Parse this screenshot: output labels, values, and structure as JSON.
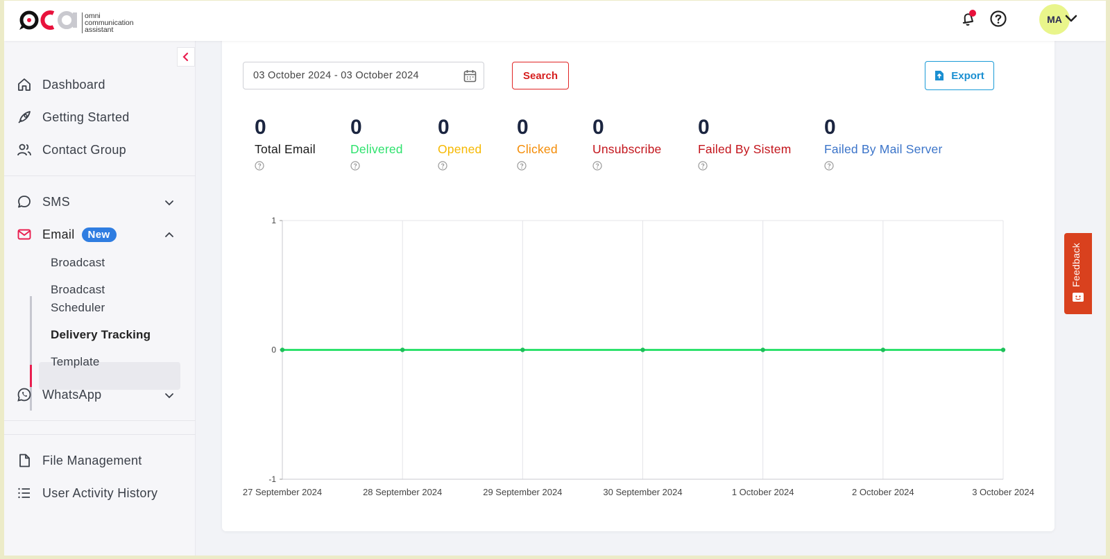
{
  "header": {
    "logo_lines": [
      "omni",
      "communication",
      "assistant"
    ],
    "logo_mark": "oca",
    "icons": [
      "bell-icon",
      "help-icon"
    ],
    "avatar_initials": "MA",
    "notification_dot_color": "#e8123c"
  },
  "sidebar": {
    "items": [
      {
        "label": "Dashboard",
        "icon": "home-icon"
      },
      {
        "label": "Getting Started",
        "icon": "rocket-icon"
      },
      {
        "label": "Contact Group",
        "icon": "users-icon"
      },
      {
        "label": "SMS",
        "icon": "chat-icon"
      },
      {
        "label": "Email",
        "icon": "mail-icon",
        "badge": "New"
      },
      {
        "label": "WhatsApp",
        "icon": "whatsapp-icon"
      },
      {
        "label": "File Management",
        "icon": "file-icon"
      },
      {
        "label": "User Activity History",
        "icon": "list-icon"
      }
    ],
    "email_subitems": [
      "Broadcast",
      "Broadcast\nScheduler",
      "Delivery Tracking",
      "Template"
    ],
    "active_subitem": "Delivery Tracking",
    "accent_color": "#e91e4f"
  },
  "filters": {
    "date_range": "03 October 2024 - 03 October 2024",
    "search_label": "Search",
    "export_label": "Export"
  },
  "stats": [
    {
      "value": "0",
      "label": "Total Email",
      "color": "#1b1b1b"
    },
    {
      "value": "0",
      "label": "Delivered",
      "color": "#2ee26d"
    },
    {
      "value": "0",
      "label": "Opened",
      "color": "#f6b800"
    },
    {
      "value": "0",
      "label": "Clicked",
      "color": "#f48c06"
    },
    {
      "value": "0",
      "label": "Unsubscribe",
      "color": "#c3151c"
    },
    {
      "value": "0",
      "label": "Failed By Sistem",
      "color": "#c3151c"
    },
    {
      "value": "0",
      "label": "Failed By Mail Server",
      "color": "#3b74c9"
    }
  ],
  "chart_data": {
    "type": "line",
    "categories": [
      "27 September 2024",
      "28 September 2024",
      "29 September 2024",
      "30 September 2024",
      "1 October 2024",
      "2 October 2024",
      "3 October 2024"
    ],
    "series": [
      {
        "values": [
          0,
          0,
          0,
          0,
          0,
          0,
          0
        ],
        "color": "#2ee26d"
      }
    ],
    "y_ticks": [
      "1",
      "0",
      "-1"
    ],
    "ylim": [
      -1,
      1
    ],
    "grid": true
  },
  "feedback": {
    "label": "Feedback"
  }
}
